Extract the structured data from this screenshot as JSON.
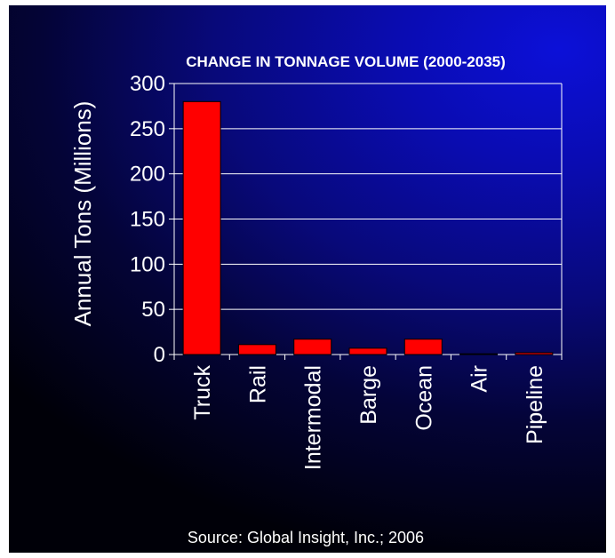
{
  "chart_data": {
    "type": "bar",
    "title": "CHANGE IN TONNAGE VOLUME (2000-2035)",
    "ylabel": "Annual Tons (Millions)",
    "xlabel": "",
    "categories": [
      "Truck",
      "Rail",
      "Intermodal",
      "Barge",
      "Ocean",
      "Air",
      "Pipeline"
    ],
    "values": [
      280,
      11,
      17,
      7,
      17,
      0.3,
      2
    ],
    "ylim": [
      0,
      300
    ],
    "yticks": [
      "0",
      "50",
      "100",
      "150",
      "200",
      "250",
      "300"
    ],
    "grid": true,
    "legend": "none"
  },
  "source_note": "Source: Global Insight, Inc.; 2006",
  "colors": {
    "bar_fill": "#ff0000",
    "bar_stroke": "#000000",
    "grid": "#ffffff",
    "text": "#ffffff"
  }
}
